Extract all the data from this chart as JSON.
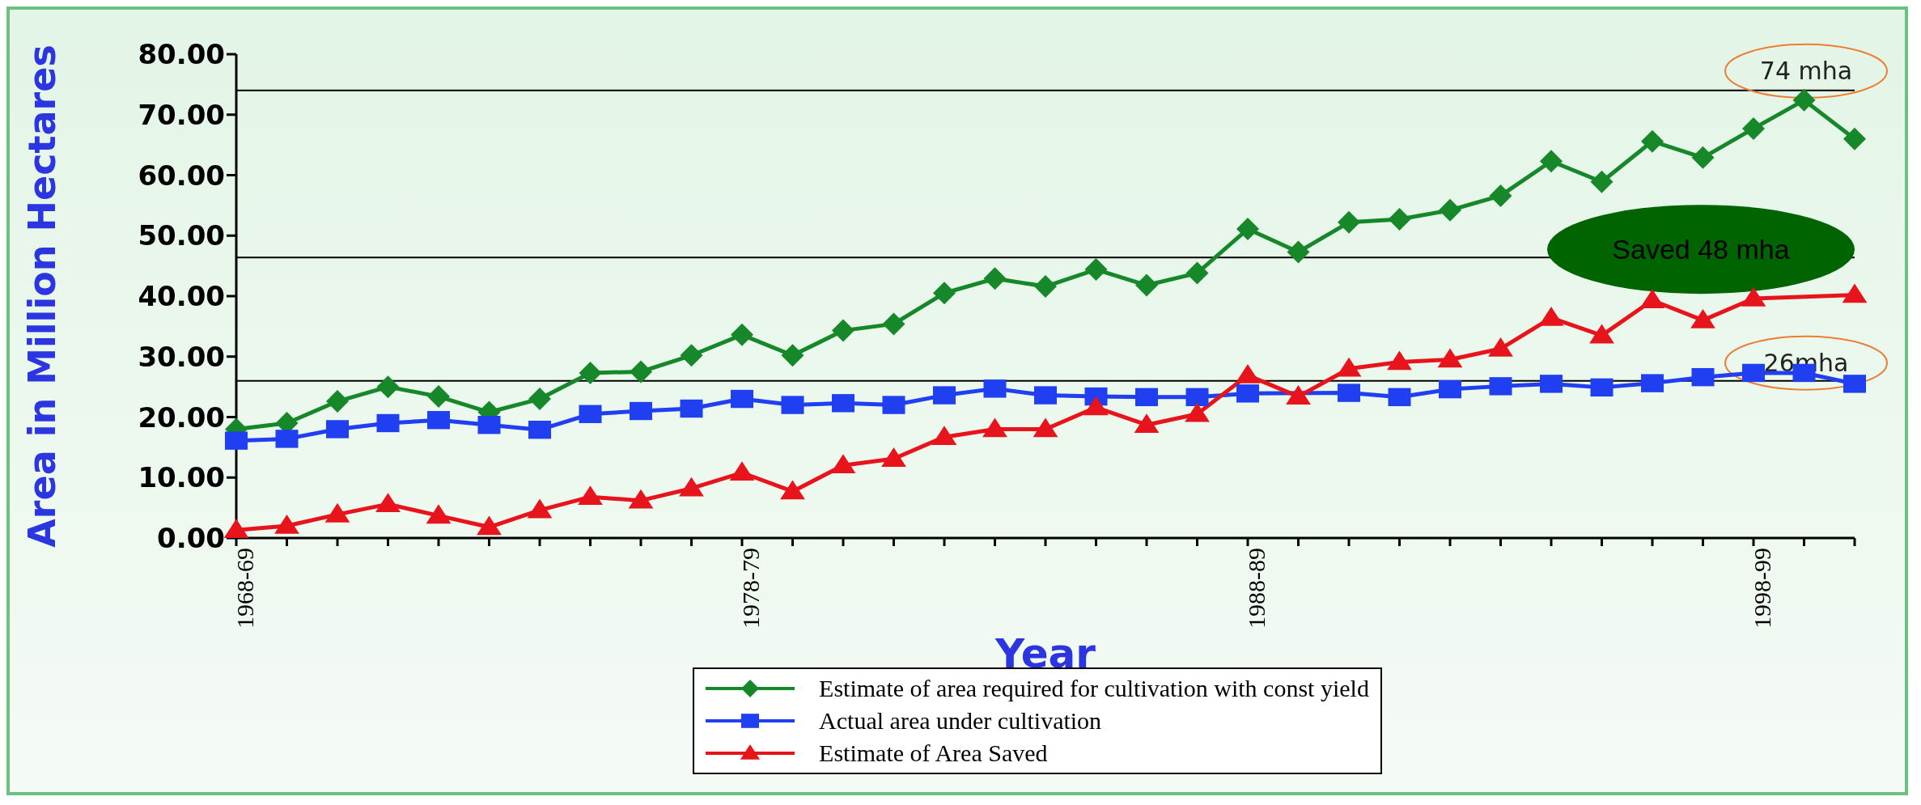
{
  "chart_data": {
    "type": "line",
    "xlabel": "Year",
    "ylabel": "Area in Million Hectares",
    "categories": [
      "1968-69",
      null,
      null,
      null,
      null,
      null,
      null,
      null,
      null,
      null,
      "1978-79",
      null,
      null,
      null,
      null,
      null,
      null,
      null,
      null,
      null,
      "1988-89",
      null,
      null,
      null,
      null,
      null,
      null,
      null,
      null,
      null,
      "1998-99",
      null,
      null
    ],
    "series": [
      {
        "name": "Estimate of area required for cultivation with const yield",
        "color": "#17882a",
        "marker": "diamond",
        "values": [
          18.0,
          19.0,
          22.6,
          25.0,
          23.4,
          20.8,
          23.0,
          27.3,
          27.5,
          30.2,
          33.6,
          30.2,
          34.3,
          35.4,
          40.5,
          42.9,
          41.6,
          44.4,
          41.8,
          43.8,
          51.1,
          47.3,
          52.2,
          52.7,
          54.2,
          56.6,
          62.3,
          58.9,
          65.6,
          62.9,
          67.7,
          72.4,
          66.0
        ]
      },
      {
        "name": "Actual area under cultivation",
        "color": "#1f3ff0",
        "marker": "square",
        "values": [
          16.1,
          16.4,
          18.0,
          19.0,
          19.5,
          18.7,
          17.9,
          20.5,
          21.0,
          21.4,
          23.0,
          22.0,
          22.3,
          22.0,
          23.6,
          24.7,
          23.6,
          23.4,
          23.3,
          23.3,
          23.9,
          null,
          24.0,
          23.3,
          24.6,
          25.1,
          25.5,
          24.9,
          25.6,
          26.6,
          27.3,
          27.3,
          25.5
        ]
      },
      {
        "name": "Estimate of Area Saved",
        "color": "#e8141b",
        "marker": "triangle",
        "values": [
          1.3,
          2.0,
          3.9,
          5.6,
          3.7,
          1.8,
          4.6,
          6.8,
          6.2,
          8.2,
          10.8,
          7.7,
          12.0,
          13.1,
          16.7,
          18.0,
          18.0,
          21.6,
          18.7,
          20.5,
          26.9,
          23.4,
          28.0,
          29.1,
          29.5,
          31.3,
          36.4,
          33.5,
          39.3,
          36.0,
          39.6,
          null,
          40.2
        ]
      }
    ],
    "ylim": [
      0,
      80
    ],
    "yticks": [
      {
        "value": 0,
        "label": "0.00"
      },
      {
        "value": 10,
        "label": "10.00"
      },
      {
        "value": 20,
        "label": "20.00"
      },
      {
        "value": 30,
        "label": "30.00"
      },
      {
        "value": 40,
        "label": "40.00"
      },
      {
        "value": 50,
        "label": "50.00"
      },
      {
        "value": 60,
        "label": "60.00"
      },
      {
        "value": 70,
        "label": "70.00"
      },
      {
        "value": 80,
        "label": "80.00"
      }
    ],
    "ref_lines": [
      {
        "axis": "y",
        "value": 74,
        "label": "74 mha",
        "color": "#000000"
      },
      {
        "axis": "y",
        "value": 46.4,
        "label": "Saved 48 mha",
        "color": "#000000"
      },
      {
        "axis": "y",
        "value": 26,
        "label": "26mha",
        "color": "#000000"
      }
    ],
    "legend": "bottom",
    "grid": false,
    "line_style": "solid"
  }
}
